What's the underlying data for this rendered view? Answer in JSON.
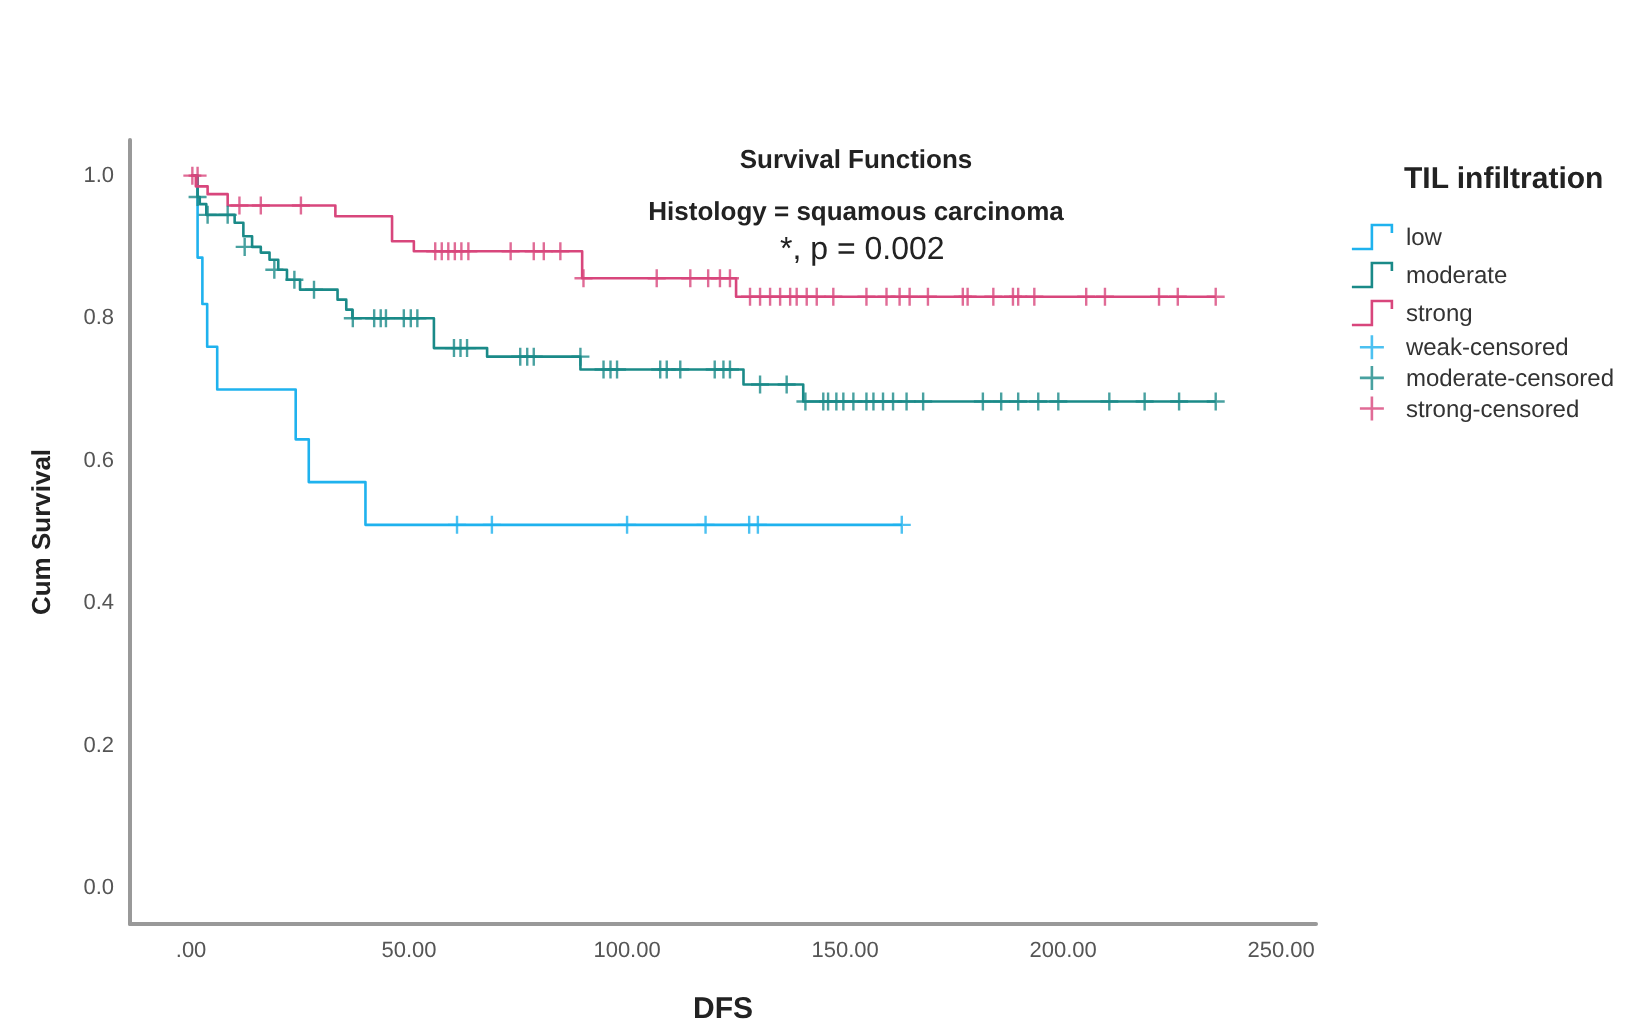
{
  "chart_data": {
    "type": "step",
    "title": "Survival Functions",
    "subtitle": "Histology = squamous carcinoma",
    "xlabel": "DFS",
    "ylabel": "Cum Survival",
    "legend_title": "TIL infiltration",
    "annotations": [
      "*, p = 0.002"
    ],
    "xlim": [
      -14,
      258
    ],
    "xticks": [
      {
        "value": 0,
        "label": ".00"
      },
      {
        "value": 50,
        "label": "50.00"
      },
      {
        "value": 100,
        "label": "100.00"
      },
      {
        "value": 150,
        "label": "150.00"
      },
      {
        "value": 200,
        "label": "200.00"
      },
      {
        "value": 250,
        "label": "250.00"
      }
    ],
    "ylim": [
      -0.05,
      1.05
    ],
    "yticks": [
      {
        "value": 0,
        "label": "0.0"
      },
      {
        "value": 0.2,
        "label": "0.2"
      },
      {
        "value": 0.4,
        "label": "0.4"
      },
      {
        "value": 0.6,
        "label": "0.6"
      },
      {
        "value": 0.8,
        "label": "0.8"
      },
      {
        "value": 1,
        "label": "1.0"
      }
    ],
    "grid": false,
    "legend": "right",
    "series": [
      {
        "name": "low",
        "marker": "none",
        "color": "#1fb2ee",
        "x": [
          0,
          1.5,
          2.6,
          3.7,
          6,
          24,
          27,
          40,
          163
        ],
        "values": [
          1,
          0.885,
          0.82,
          0.76,
          0.7,
          0.63,
          0.57,
          0.51,
          0.51
        ]
      },
      {
        "name": "moderate",
        "marker": "none",
        "color": "#1a8a88",
        "x": [
          0,
          1.5,
          2,
          3.5,
          10,
          12,
          14,
          16,
          18,
          20,
          22,
          25,
          33.6,
          35.6,
          37,
          55.7,
          67.9,
          89.3,
          126.7,
          140.4,
          235
        ],
        "values": [
          1,
          0.97,
          0.96,
          0.945,
          0.934,
          0.915,
          0.9,
          0.892,
          0.882,
          0.868,
          0.854,
          0.84,
          0.826,
          0.812,
          0.8,
          0.758,
          0.746,
          0.728,
          0.707,
          0.683,
          0.683
        ]
      },
      {
        "name": "strong",
        "marker": "none",
        "color": "#d8467c",
        "x": [
          0,
          1.1,
          3.8,
          8.4,
          33.1,
          46.1,
          51.1,
          89.7,
          125,
          235
        ],
        "values": [
          1,
          0.985,
          0.974,
          0.958,
          0.943,
          0.908,
          0.894,
          0.856,
          0.83,
          0.83
        ]
      },
      {
        "name": "weak-censored",
        "type": "scatter",
        "marker": "cross",
        "color": "#1fb2ee",
        "x": [
          61,
          69,
          100,
          118,
          128,
          130,
          163
        ],
        "values": [
          0.51,
          0.51,
          0.51,
          0.51,
          0.51,
          0.51,
          0.51
        ]
      },
      {
        "name": "moderate-censored",
        "type": "scatter",
        "marker": "cross",
        "color": "#1a8a88",
        "x": [
          1.5,
          3.8,
          8.4,
          12.3,
          19.1,
          23.7,
          28.2,
          37.1,
          42,
          43.5,
          44.7,
          48.8,
          50.4,
          51.9,
          60.3,
          61.8,
          63.3,
          75.5,
          77.1,
          78.6,
          89.3,
          94.6,
          96.2,
          97.7,
          107.6,
          109.1,
          112.2,
          120.1,
          122.1,
          123.6,
          130.5,
          136.6,
          140.9,
          145,
          146.1,
          148,
          149.6,
          151.9,
          154.9,
          156.5,
          158.7,
          161,
          164.1,
          167.9,
          181.6,
          185.8,
          189.7,
          194.3,
          198.9,
          210.6,
          218.7,
          226.6,
          235
        ],
        "values": [
          0.97,
          0.945,
          0.945,
          0.9,
          0.868,
          0.854,
          0.84,
          0.8,
          0.8,
          0.8,
          0.8,
          0.8,
          0.8,
          0.8,
          0.758,
          0.758,
          0.758,
          0.746,
          0.746,
          0.746,
          0.746,
          0.728,
          0.728,
          0.728,
          0.728,
          0.728,
          0.728,
          0.728,
          0.728,
          0.728,
          0.707,
          0.707,
          0.683,
          0.683,
          0.683,
          0.683,
          0.683,
          0.683,
          0.683,
          0.683,
          0.683,
          0.683,
          0.683,
          0.683,
          0.683,
          0.683,
          0.683,
          0.683,
          0.683,
          0.683,
          0.683,
          0.683,
          0.683
        ]
      },
      {
        "name": "strong-censored",
        "type": "scatter",
        "marker": "cross",
        "color": "#d8467c",
        "x": [
          0.3,
          1.5,
          11.1,
          16,
          25.2,
          56,
          57.5,
          59,
          60.5,
          62,
          63.6,
          73.3,
          78.6,
          80.9,
          84.7,
          90,
          106.8,
          114.5,
          118.6,
          121.3,
          123.6,
          128.2,
          130.5,
          132.8,
          135.1,
          137.4,
          138.9,
          141.2,
          143.5,
          147.3,
          154.9,
          159.5,
          162.5,
          164.8,
          169,
          177,
          178.1,
          184,
          188.5,
          189.7,
          193.4,
          205.3,
          209.6,
          222,
          226.3,
          235
        ],
        "values": [
          1,
          1,
          0.958,
          0.958,
          0.958,
          0.894,
          0.894,
          0.894,
          0.894,
          0.894,
          0.894,
          0.894,
          0.894,
          0.894,
          0.894,
          0.856,
          0.856,
          0.856,
          0.856,
          0.856,
          0.856,
          0.83,
          0.83,
          0.83,
          0.83,
          0.83,
          0.83,
          0.83,
          0.83,
          0.83,
          0.83,
          0.83,
          0.83,
          0.83,
          0.83,
          0.83,
          0.83,
          0.83,
          0.83,
          0.83,
          0.83,
          0.83,
          0.83,
          0.83,
          0.83,
          0.83
        ]
      }
    ]
  }
}
